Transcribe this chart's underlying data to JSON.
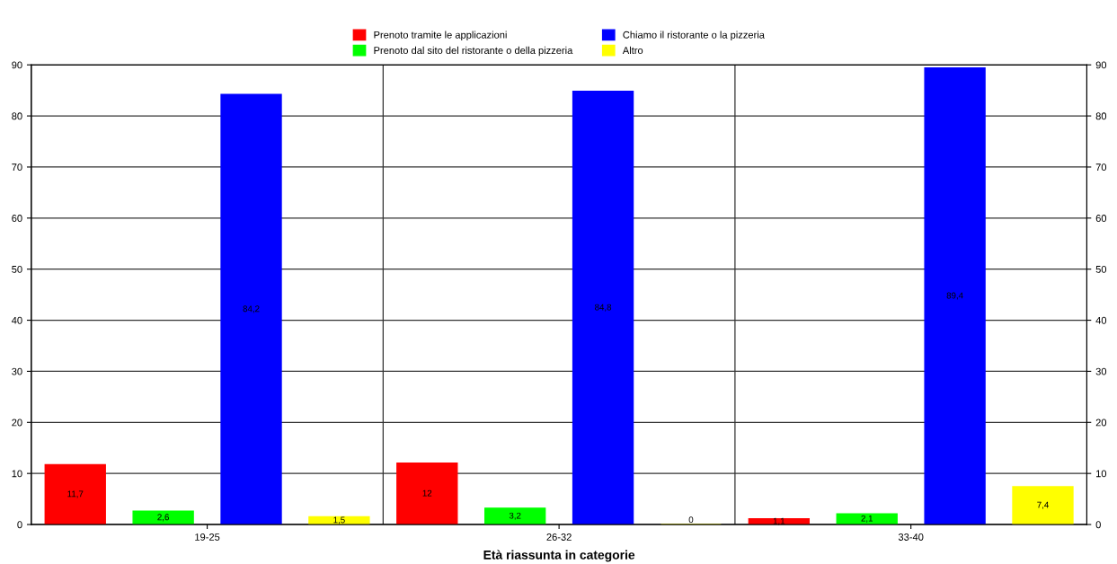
{
  "chart_data": {
    "type": "bar",
    "xlabel": "Età riassunta in categorie",
    "categories": [
      "19-25",
      "26-32",
      "33-40"
    ],
    "series": [
      {
        "name": "Prenoto tramite le applicazioni",
        "color": "#ff0000",
        "values": [
          11.7,
          12,
          1.1
        ],
        "value_labels": [
          "11,7",
          "12",
          "1,1"
        ]
      },
      {
        "name": "Prenoto dal sito del ristorante o della pizzeria",
        "color": "#00ff00",
        "values": [
          2.6,
          3.2,
          2.1
        ],
        "value_labels": [
          "2,6",
          "3,2",
          "2,1"
        ]
      },
      {
        "name": "Chiamo il ristorante o la pizzeria",
        "color": "#0000ff",
        "values": [
          84.2,
          84.8,
          89.4
        ],
        "value_labels": [
          "84,2",
          "84,8",
          "89,4"
        ]
      },
      {
        "name": "Altro",
        "color": "#ffff00",
        "values": [
          1.5,
          0,
          7.4
        ],
        "value_labels": [
          "1,5",
          "0",
          "7,4"
        ]
      }
    ],
    "ylim": [
      0,
      90
    ],
    "yticks": [
      0,
      10,
      20,
      30,
      40,
      50,
      60,
      70,
      80,
      90
    ],
    "y2lim": [
      0,
      90
    ],
    "y2ticks": [
      0,
      10,
      20,
      30,
      40,
      50,
      60,
      70,
      80,
      90
    ],
    "grid": true,
    "legend": "top"
  }
}
